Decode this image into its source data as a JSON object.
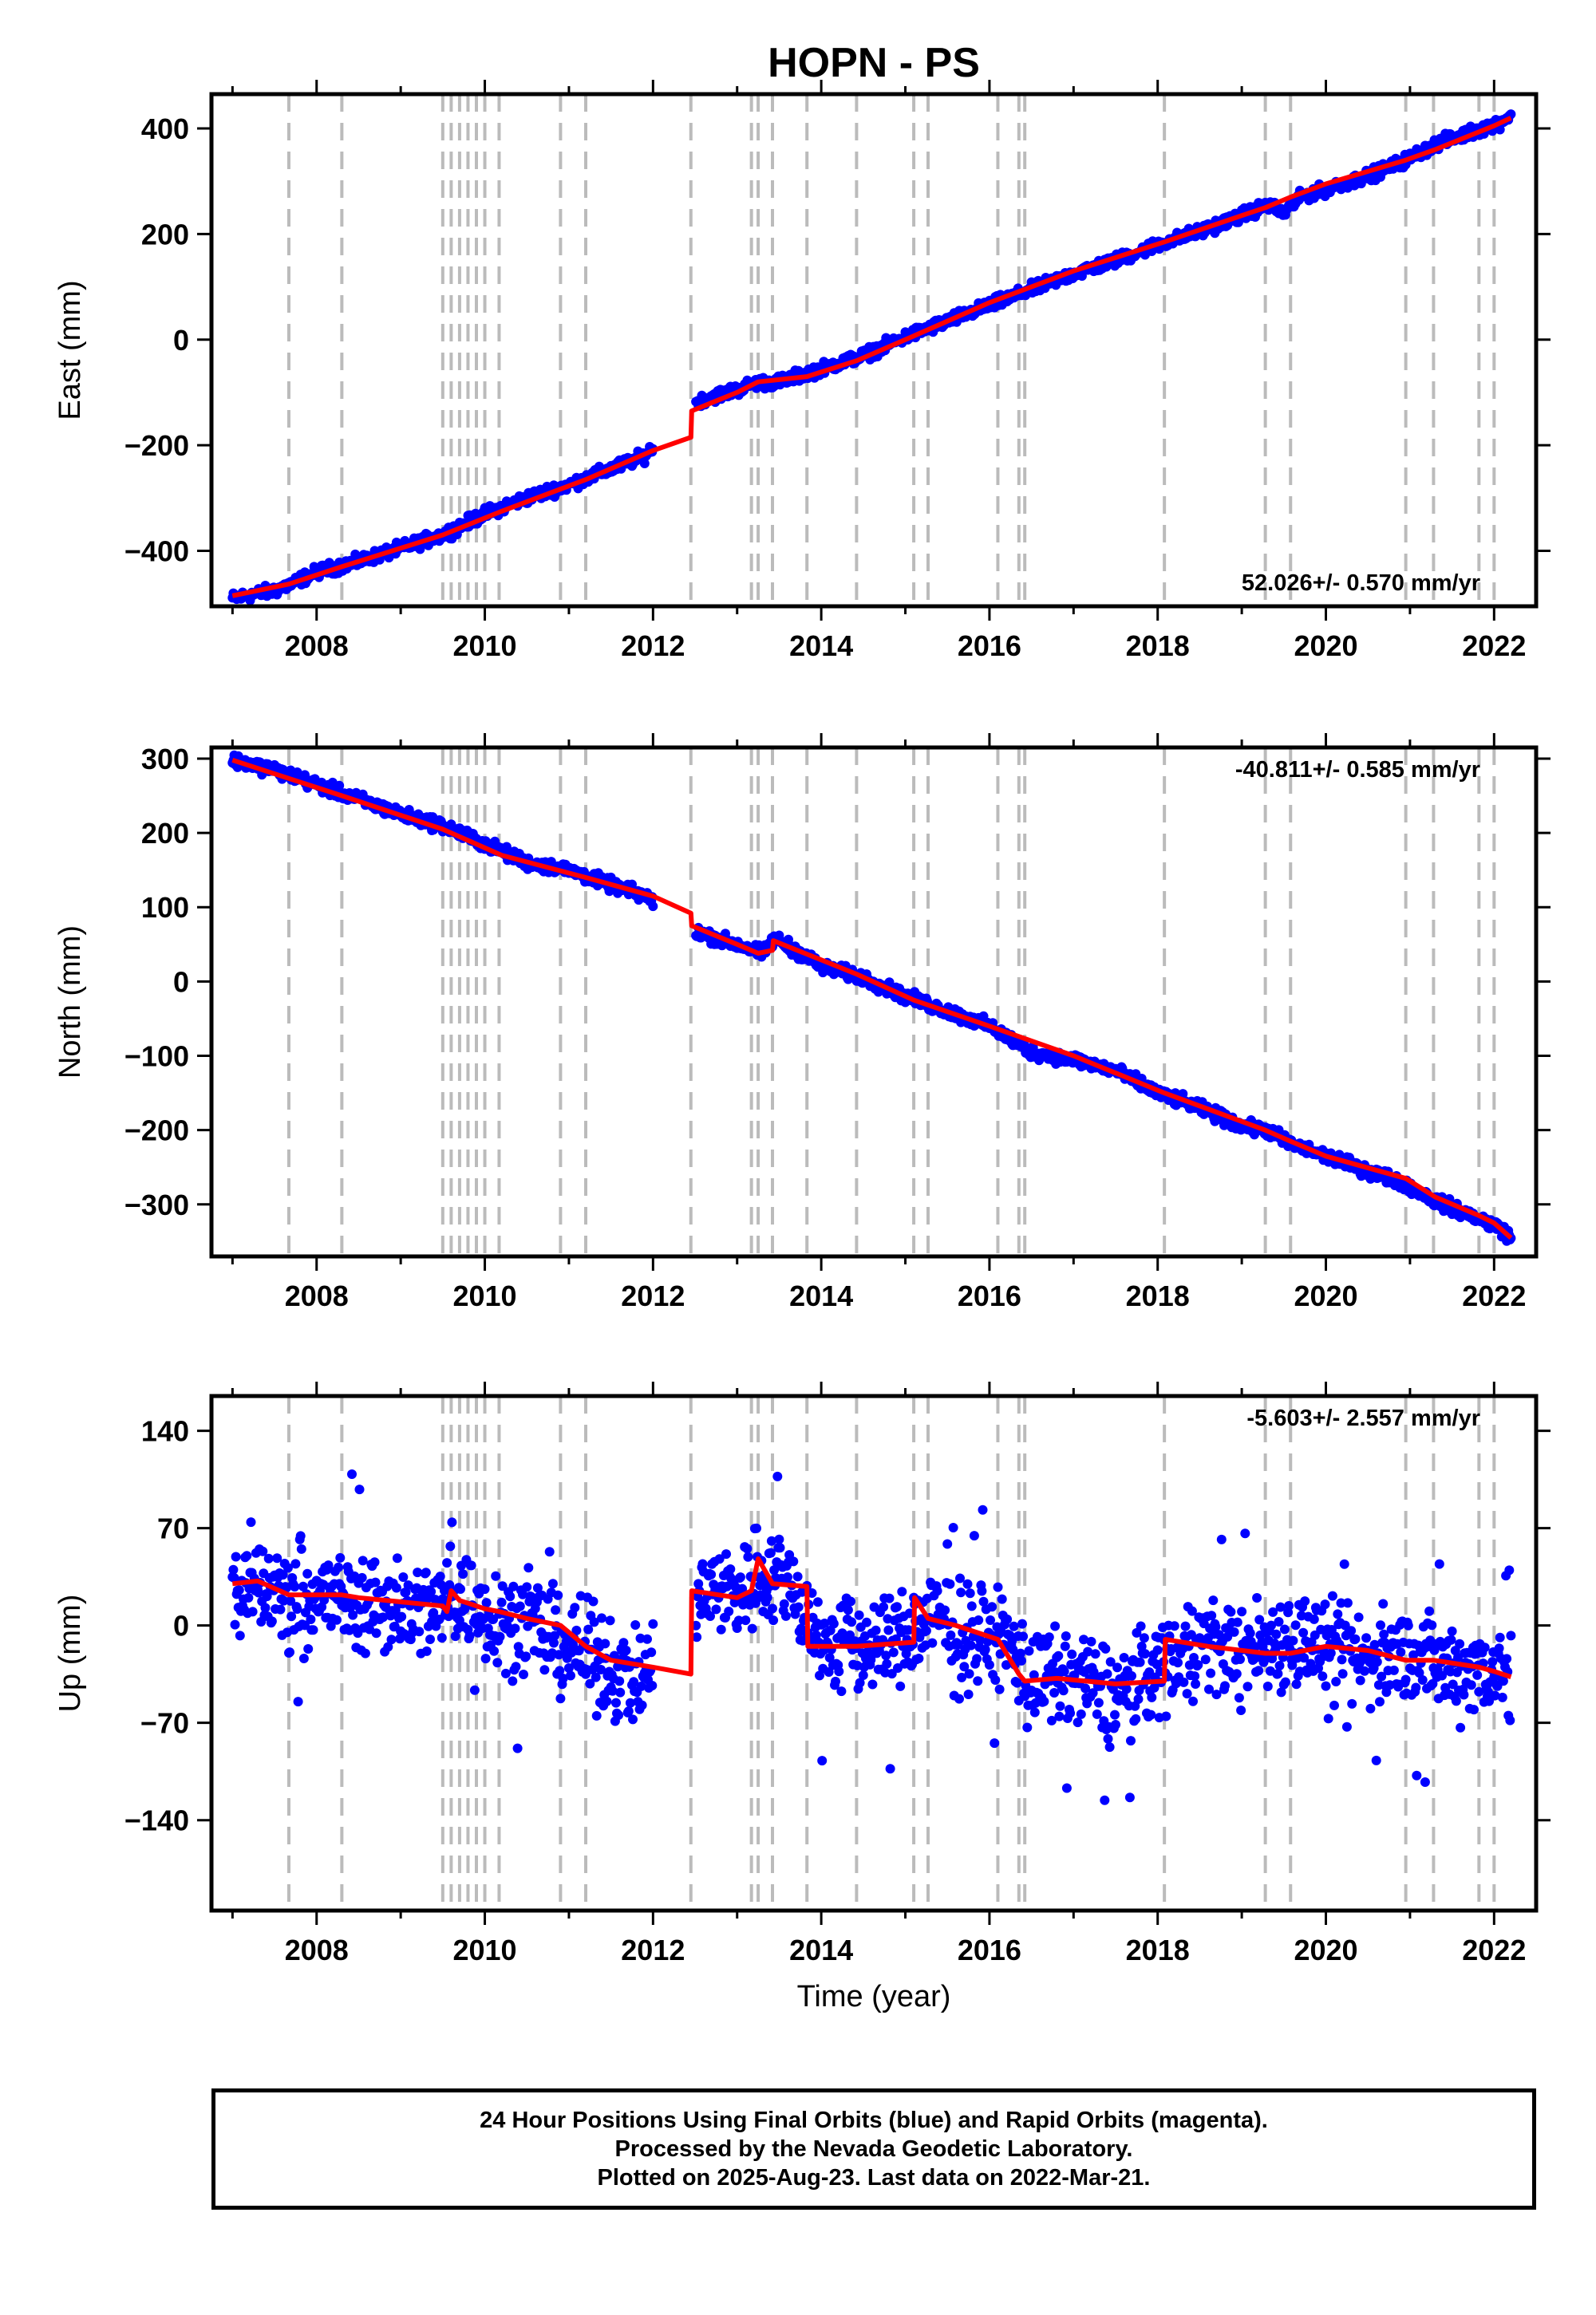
{
  "title": "HOPN - PS",
  "colors": {
    "final": "#0000ff",
    "model": "#ff0000",
    "steps": "#bbbbbb",
    "axis": "#000000"
  },
  "time_axis": {
    "label": "Time (year)",
    "range": [
      2006.75,
      2022.5
    ],
    "ticks": [
      2008,
      2010,
      2012,
      2014,
      2016,
      2018,
      2020,
      2022
    ],
    "tick_labels": [
      "2008",
      "2010",
      "2012",
      "2014",
      "2016",
      "2018",
      "2020",
      "2022"
    ]
  },
  "footer": {
    "line1": "24 Hour Positions Using Final Orbits (blue) and Rapid Orbits (magenta).",
    "line2": "Processed by the Nevada Geodetic Laboratory.",
    "line3": "Plotted on 2025-Aug-23. Last data on 2022-Mar-21."
  },
  "chart_data": [
    {
      "type": "scatter",
      "ylabel": "East (mm)",
      "ylim": [
        -505,
        465
      ],
      "yticks": [
        -400,
        -200,
        0,
        200,
        400
      ],
      "ytick_labels": [
        "−400",
        "−200",
        "0",
        "200",
        "400"
      ],
      "rate": "52.026+/- 0.570 mm/yr",
      "rate_position": "bottom-right",
      "steps": [
        2007.67,
        2008.3,
        2009.5,
        2009.6,
        2009.7,
        2009.8,
        2009.9,
        2010.0,
        2010.17,
        2010.9,
        2011.2,
        2012.45,
        2013.17,
        2013.25,
        2013.42,
        2013.83,
        2014.42,
        2015.1,
        2015.27,
        2016.1,
        2016.35,
        2016.42,
        2018.08,
        2019.28,
        2019.58,
        2020.95,
        2021.28,
        2021.82,
        2022.0
      ],
      "series": [
        {
          "kind": "points",
          "x": [
            2007.0,
            2007.5,
            2007.67,
            2008.0,
            2008.5,
            2009.0,
            2009.5,
            2010.0,
            2010.5,
            2011.0,
            2011.5,
            2011.9,
            2012.55,
            2013.0,
            2013.2,
            2013.5,
            2013.8,
            2014.0,
            2014.5,
            2015.0,
            2015.5,
            2016.0,
            2016.5,
            2017.0,
            2017.5,
            2018.0,
            2018.5,
            2019.0,
            2019.3,
            2019.5,
            2019.7,
            2020.0,
            2020.5,
            2020.95,
            2021.3,
            2022.05,
            2022.2
          ],
          "y": [
            -490,
            -475,
            -465,
            -440,
            -420,
            -395,
            -370,
            -330,
            -300,
            -275,
            -245,
            -220,
            -115,
            -95,
            -82,
            -80,
            -65,
            -55,
            -30,
            5,
            35,
            65,
            95,
            125,
            150,
            180,
            205,
            235,
            255,
            240,
            270,
            285,
            310,
            340,
            370,
            410,
            425
          ],
          "noise": 8
        },
        {
          "kind": "line",
          "name": "",
          "x": [
            2007.0,
            2007.67,
            2008.3,
            2009.5,
            2010.2,
            2011.2,
            2012.0,
            2012.45,
            2012.46,
            2013.0,
            2013.25,
            2013.83,
            2014.42,
            2015.0,
            2016.0,
            2017.0,
            2018.08,
            2019.0,
            2019.28,
            2019.58,
            2020.0,
            2020.95,
            2021.3,
            2022.0,
            2022.2
          ],
          "y": [
            -485,
            -463,
            -430,
            -370,
            -325,
            -265,
            -210,
            -185,
            -135,
            -100,
            -80,
            -70,
            -40,
            0,
            70,
            130,
            185,
            235,
            250,
            270,
            295,
            340,
            360,
            405,
            420
          ]
        }
      ]
    },
    {
      "type": "scatter",
      "ylabel": "North (mm)",
      "ylim": [
        -370,
        315
      ],
      "yticks": [
        -300,
        -200,
        -100,
        0,
        100,
        200,
        300
      ],
      "ytick_labels": [
        "−300",
        "−200",
        "−100",
        "0",
        "100",
        "200",
        "300"
      ],
      "rate": "-40.811+/- 0.585 mm/yr",
      "rate_position": "top-right",
      "steps": [
        2007.67,
        2008.3,
        2009.5,
        2009.6,
        2009.7,
        2009.8,
        2009.9,
        2010.0,
        2010.17,
        2010.9,
        2011.2,
        2012.45,
        2013.17,
        2013.25,
        2013.42,
        2013.83,
        2014.42,
        2015.1,
        2015.27,
        2016.1,
        2016.35,
        2016.42,
        2018.08,
        2019.28,
        2019.58,
        2020.95,
        2021.28,
        2021.82,
        2022.0
      ],
      "series": [
        {
          "kind": "points",
          "x": [
            2007.0,
            2007.5,
            2008.0,
            2008.5,
            2009.0,
            2009.5,
            2010.0,
            2010.5,
            2011.0,
            2011.5,
            2011.9,
            2012.55,
            2013.0,
            2013.3,
            2013.45,
            2013.8,
            2014.0,
            2014.5,
            2015.0,
            2015.5,
            2016.0,
            2016.5,
            2017.0,
            2017.5,
            2018.0,
            2018.5,
            2019.0,
            2019.3,
            2019.6,
            2020.0,
            2020.5,
            2020.9,
            2021.3,
            2022.05,
            2022.2
          ],
          "y": [
            298,
            285,
            265,
            245,
            225,
            210,
            185,
            160,
            150,
            130,
            115,
            65,
            50,
            38,
            58,
            35,
            20,
            5,
            -20,
            -40,
            -60,
            -95,
            -105,
            -120,
            -150,
            -170,
            -195,
            -200,
            -220,
            -235,
            -255,
            -270,
            -295,
            -330,
            -345
          ],
          "noise": 6
        },
        {
          "kind": "line",
          "name": "",
          "x": [
            2007.0,
            2008.3,
            2009.5,
            2010.2,
            2011.2,
            2012.0,
            2012.45,
            2012.46,
            2013.0,
            2013.25,
            2013.42,
            2013.43,
            2014.42,
            2015.1,
            2016.0,
            2017.0,
            2018.08,
            2019.28,
            2019.58,
            2020.0,
            2020.95,
            2021.3,
            2021.82,
            2022.0,
            2022.2
          ],
          "y": [
            298,
            250,
            205,
            170,
            140,
            115,
            92,
            75,
            50,
            38,
            42,
            55,
            10,
            -25,
            -60,
            -100,
            -150,
            -200,
            -215,
            -235,
            -265,
            -290,
            -315,
            -325,
            -345
          ]
        }
      ]
    },
    {
      "type": "scatter",
      "ylabel": "Up (mm)",
      "ylim": [
        -205,
        165
      ],
      "yticks": [
        -140,
        -70,
        0,
        70,
        140
      ],
      "ytick_labels": [
        "−140",
        "−70",
        "0",
        "70",
        "140"
      ],
      "rate": "-5.603+/- 2.557 mm/yr",
      "rate_position": "top-right",
      "steps": [
        2007.67,
        2008.3,
        2009.5,
        2009.6,
        2009.7,
        2009.8,
        2009.9,
        2010.0,
        2010.17,
        2010.9,
        2011.2,
        2012.45,
        2013.17,
        2013.25,
        2013.42,
        2013.83,
        2014.42,
        2015.1,
        2015.27,
        2016.1,
        2016.35,
        2016.42,
        2018.08,
        2019.28,
        2019.58,
        2020.95,
        2021.28,
        2021.82,
        2022.0
      ],
      "series": [
        {
          "kind": "points",
          "x": [
            2007.0,
            2007.5,
            2008.0,
            2008.5,
            2009.0,
            2009.5,
            2009.6,
            2010.0,
            2010.5,
            2011.0,
            2011.5,
            2011.9,
            2012.5,
            2013.0,
            2013.3,
            2013.7,
            2014.0,
            2014.5,
            2015.0,
            2015.3,
            2015.8,
            2016.3,
            2016.5,
            2017.0,
            2017.5,
            2018.0,
            2018.5,
            2019.0,
            2019.5,
            2019.8,
            2020.0,
            2020.5,
            2021.0,
            2021.3,
            2022.05,
            2022.2
          ],
          "y": [
            25,
            25,
            20,
            18,
            12,
            12,
            25,
            10,
            0,
            -15,
            -30,
            -40,
            20,
            25,
            40,
            25,
            -15,
            -15,
            -10,
            5,
            -5,
            -15,
            -40,
            -40,
            -50,
            -30,
            -10,
            -20,
            -10,
            -10,
            -20,
            -25,
            -20,
            -30,
            -30,
            -40
          ],
          "noise": 25
        },
        {
          "kind": "line",
          "name": "",
          "x": [
            2007.0,
            2007.3,
            2007.67,
            2008.3,
            2008.5,
            2009.5,
            2009.55,
            2009.6,
            2009.7,
            2009.8,
            2009.9,
            2010.0,
            2010.17,
            2010.5,
            2010.9,
            2011.2,
            2011.5,
            2012.0,
            2012.45,
            2012.46,
            2013.0,
            2013.17,
            2013.25,
            2013.42,
            2013.83,
            2013.84,
            2014.42,
            2015.1,
            2015.11,
            2015.27,
            2015.6,
            2016.1,
            2016.35,
            2016.42,
            2016.8,
            2017.5,
            2018.08,
            2018.09,
            2018.6,
            2019.28,
            2019.58,
            2020.0,
            2020.5,
            2020.95,
            2021.28,
            2021.82,
            2022.0,
            2022.2
          ],
          "y": [
            30,
            32,
            22,
            22,
            20,
            14,
            10,
            25,
            18,
            16,
            14,
            12,
            10,
            5,
            0,
            -15,
            -25,
            -30,
            -35,
            25,
            20,
            25,
            48,
            30,
            28,
            -15,
            -15,
            -12,
            20,
            5,
            0,
            -10,
            -35,
            -40,
            -38,
            -42,
            -40,
            -10,
            -15,
            -20,
            -20,
            -15,
            -18,
            -25,
            -25,
            -30,
            -33,
            -37
          ]
        }
      ]
    }
  ]
}
